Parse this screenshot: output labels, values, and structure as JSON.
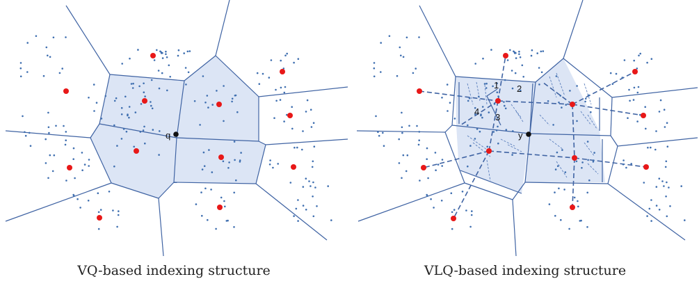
{
  "colors": {
    "edge": "#3f63a3",
    "cell_fill": "#dce5f5",
    "point": "#3f6fb0",
    "centroid": "#e81818",
    "query": "#111111"
  },
  "panels": [
    {
      "caption": "VQ-based indexing structure",
      "query_label": "q"
    },
    {
      "caption": "VLQ-based indexing structure",
      "query_label": "y",
      "region_labels": [
        "1",
        "2",
        "3",
        "4"
      ]
    }
  ]
}
